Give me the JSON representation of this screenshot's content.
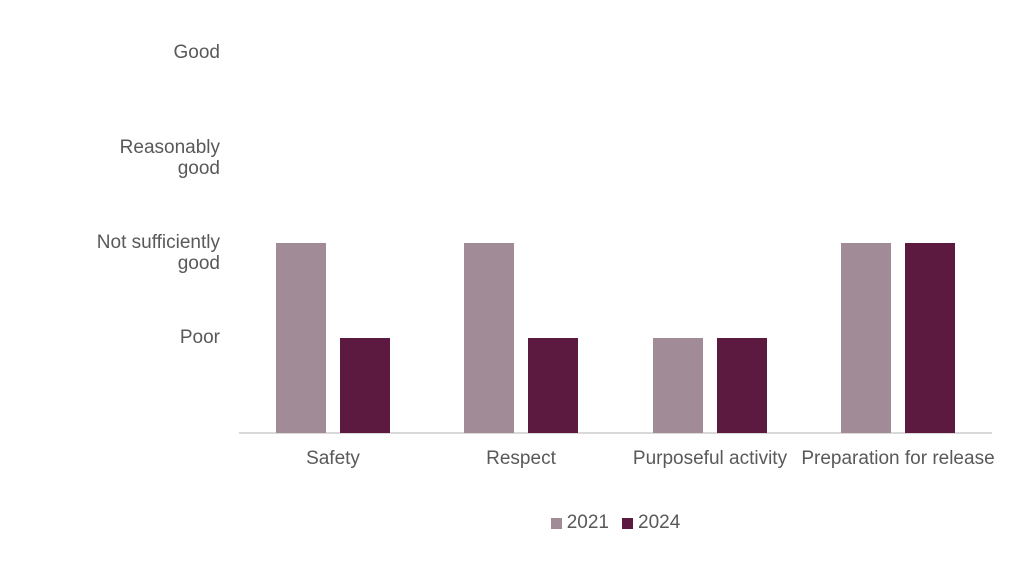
{
  "chart_data": {
    "type": "bar",
    "title": "",
    "xlabel": "",
    "ylabel": "",
    "grid": false,
    "categories": [
      "Safety",
      "Respect",
      "Purposeful activity",
      "Preparation for release"
    ],
    "series": [
      {
        "name": "2021",
        "color": "#a18b96",
        "values": [
          2,
          2,
          1,
          2
        ]
      },
      {
        "name": "2024",
        "color": "#5c1a40",
        "values": [
          1,
          1,
          1,
          2
        ]
      }
    ],
    "y_axis": {
      "min": 0,
      "max": 4,
      "ticks": [
        {
          "value": 4,
          "label": "Good"
        },
        {
          "value": 3,
          "label": "Reasonably\ngood"
        },
        {
          "value": 2,
          "label": "Not sufficiently\ngood"
        },
        {
          "value": 1,
          "label": "Poor"
        }
      ]
    },
    "legend": {
      "position": "bottom",
      "entries": [
        "2021",
        "2024"
      ]
    },
    "colors": {
      "series_2021": "#a18b96",
      "series_2024": "#5c1a40",
      "axis_line": "#d9d9d9",
      "text": "#595959",
      "background": "#ffffff"
    }
  }
}
